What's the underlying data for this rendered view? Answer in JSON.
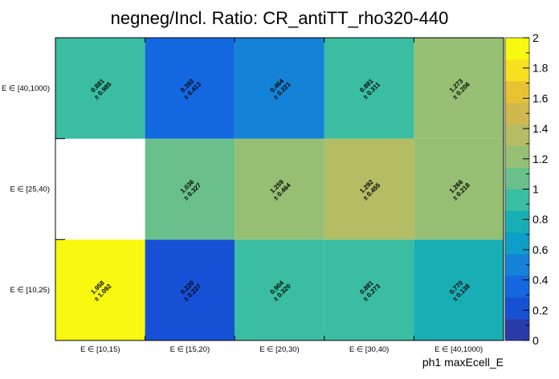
{
  "chart_data": {
    "type": "heatmap",
    "title": "negneg/Incl. Ratio: CR_antiTT_rho320-440",
    "xlabel": "ph1 maxEcell_E",
    "ylabel": "",
    "x_categories": [
      "E ∈ [10,15)",
      "E ∈ [15,20)",
      "E ∈ [20,30)",
      "E ∈ [30,40)",
      "E ∈ [40,1000)"
    ],
    "y_categories": [
      "E ∈ [10,25)",
      "E ∈ [25,40)",
      "E ∈ [40,1000)"
    ],
    "cells": [
      [
        {
          "value": 1.958,
          "error": 1.092,
          "label": "1.958",
          "err_label": "± 1.092"
        },
        {
          "value": 0.22,
          "error": 0.227,
          "label": "0.220",
          "err_label": "± 0.227"
        },
        {
          "value": 0.904,
          "error": 0.32,
          "label": "0.904",
          "err_label": "± 0.320"
        },
        {
          "value": 0.881,
          "error": 0.273,
          "label": "0.881",
          "err_label": "± 0.273"
        },
        {
          "value": 0.77,
          "error": 0.138,
          "label": "0.770",
          "err_label": "± 0.138"
        }
      ],
      [
        null,
        {
          "value": 1.036,
          "error": 0.327,
          "label": "1.036",
          "err_label": "± 0.327"
        },
        {
          "value": 1.259,
          "error": 0.464,
          "label": "1.259",
          "err_label": "± 0.464"
        },
        {
          "value": 1.292,
          "error": 0.455,
          "label": "1.292",
          "err_label": "± 0.455"
        },
        {
          "value": 1.266,
          "error": 0.218,
          "label": "1.266",
          "err_label": "± 0.218"
        }
      ],
      [
        {
          "value": 0.881,
          "error": 0.985,
          "label": "0.881",
          "err_label": "± 0.985"
        },
        {
          "value": 0.392,
          "error": 0.413,
          "label": "0.392",
          "err_label": "± 0.413"
        },
        {
          "value": 0.464,
          "error": 0.221,
          "label": "0.464",
          "err_label": "± 0.221"
        },
        {
          "value": 0.881,
          "error": 0.311,
          "label": "0.881",
          "err_label": "± 0.311"
        },
        {
          "value": 1.273,
          "error": 0.206,
          "label": "1.273",
          "err_label": "± 0.206"
        }
      ]
    ],
    "zlim": [
      0,
      2
    ],
    "z_ticks": [
      "0",
      "0.2",
      "0.4",
      "0.6",
      "0.8",
      "1",
      "1.2",
      "1.4",
      "1.6",
      "1.8",
      "2"
    ],
    "palette": [
      "#2a3ca8",
      "#1650d4",
      "#1468e0",
      "#1482d6",
      "#0e9ec8",
      "#18aeb4",
      "#3abda0",
      "#6ac08a",
      "#96bf74",
      "#b4bc64",
      "#d0b84e",
      "#e8c232",
      "#f8e020",
      "#f8f810"
    ],
    "empty_color": "#ffffff"
  }
}
